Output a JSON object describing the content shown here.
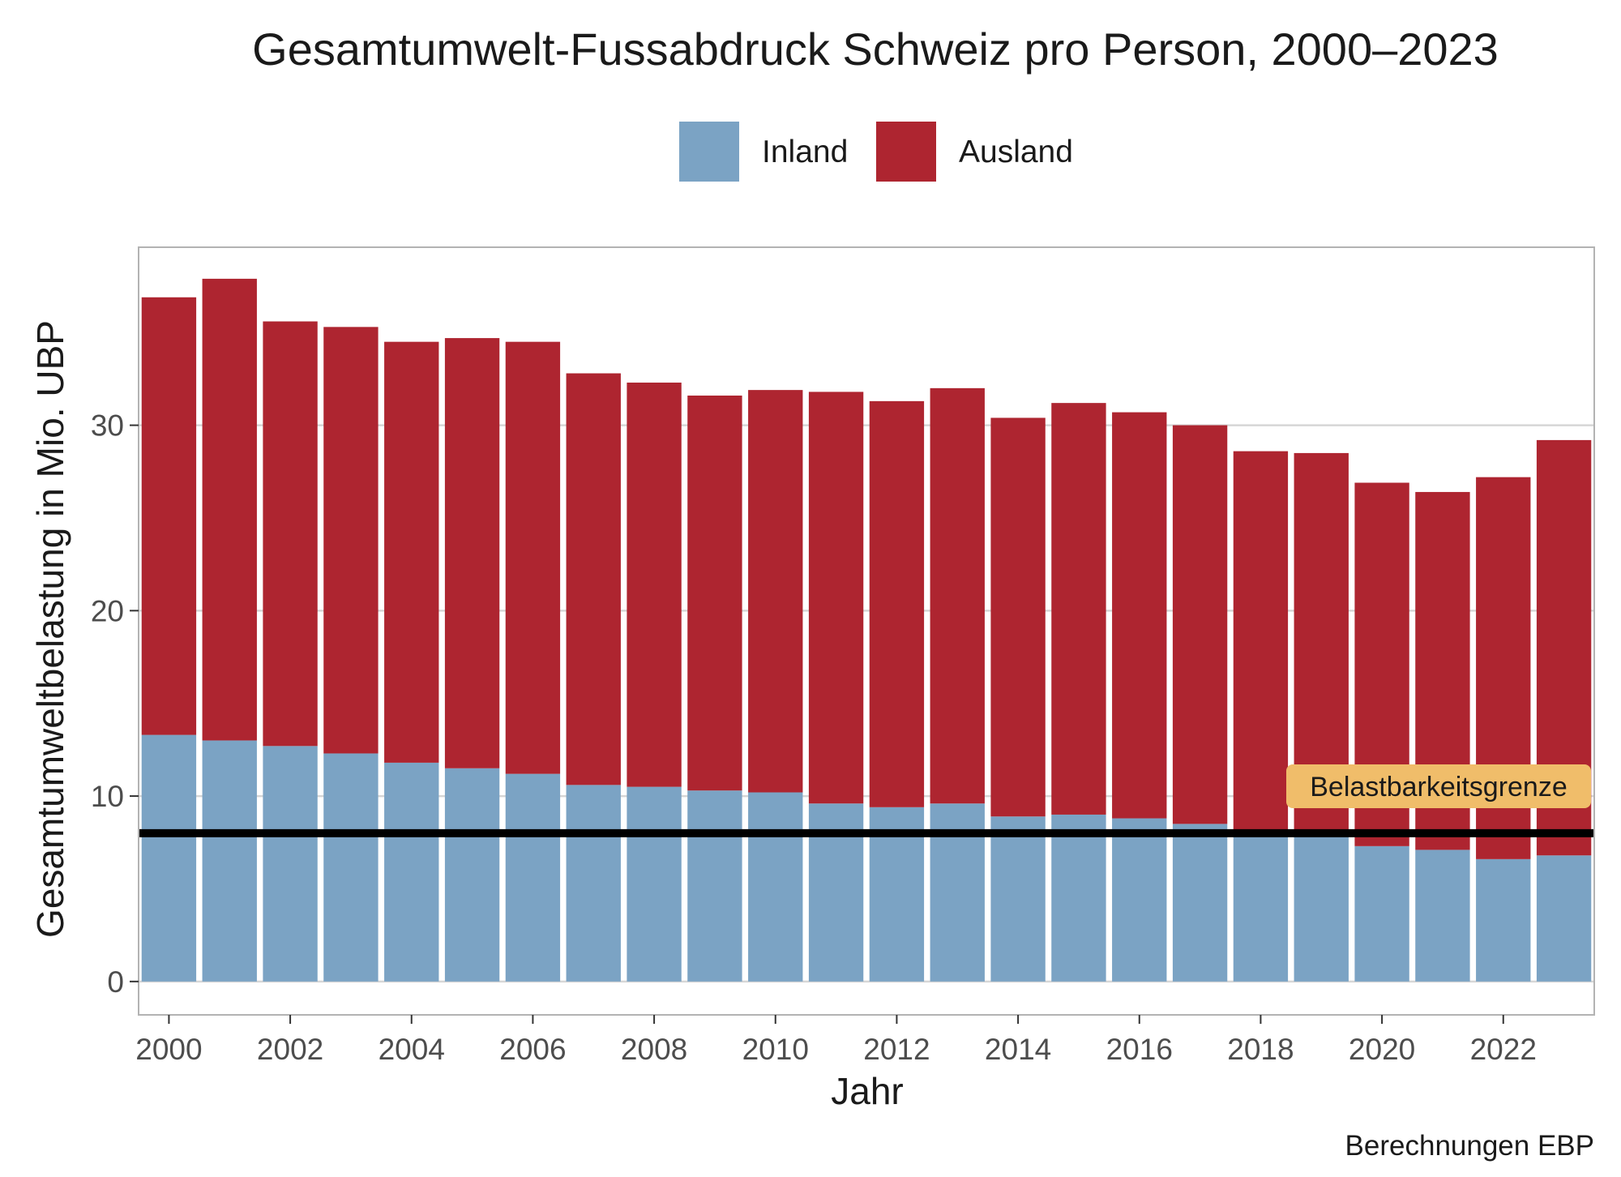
{
  "chart_data": {
    "type": "bar",
    "stacked": true,
    "title": "Gesamtumwelt-Fussabdruck Schweiz pro Person, 2000–2023",
    "xlabel": "Jahr",
    "ylabel": "Gesamtumweltbelastung in Mio. UBP",
    "caption": "Berechnungen EBP",
    "legend": {
      "position": "top",
      "entries": [
        {
          "name": "Inland",
          "color": "#7ba3c4"
        },
        {
          "name": "Ausland",
          "color": "#ae2530"
        }
      ]
    },
    "categories": [
      2000,
      2001,
      2002,
      2003,
      2004,
      2005,
      2006,
      2007,
      2008,
      2009,
      2010,
      2011,
      2012,
      2013,
      2014,
      2015,
      2016,
      2017,
      2018,
      2019,
      2020,
      2021,
      2022,
      2023
    ],
    "x_ticks": [
      "2000",
      "2002",
      "2004",
      "2006",
      "2008",
      "2010",
      "2012",
      "2014",
      "2016",
      "2018",
      "2020",
      "2022"
    ],
    "series": [
      {
        "name": "Inland",
        "color": "#7ba3c4",
        "values": [
          13.3,
          13.0,
          12.7,
          12.3,
          11.8,
          11.5,
          11.2,
          10.6,
          10.5,
          10.3,
          10.2,
          9.6,
          9.4,
          9.6,
          8.9,
          9.0,
          8.8,
          8.5,
          8.0,
          7.9,
          7.3,
          7.1,
          6.6,
          6.8
        ]
      },
      {
        "name": "Ausland",
        "color": "#ae2530",
        "values": [
          23.6,
          24.9,
          22.9,
          23.0,
          22.7,
          23.2,
          23.3,
          22.2,
          21.8,
          21.3,
          21.7,
          22.2,
          21.9,
          22.4,
          21.5,
          22.2,
          21.9,
          21.5,
          20.6,
          20.6,
          19.6,
          19.3,
          20.6,
          22.4
        ]
      }
    ],
    "y_ticks": [
      0,
      10,
      20,
      30
    ],
    "ylim": [
      -1.8,
      39.6
    ],
    "reference_line": {
      "value": 8.0,
      "label": "Belastbarkeitsgrenze",
      "color": "#000000",
      "label_fill": "#f0bd6a"
    },
    "grid": true,
    "panel_border": "#b3b3b3",
    "grid_color": "#d6d6d6"
  }
}
